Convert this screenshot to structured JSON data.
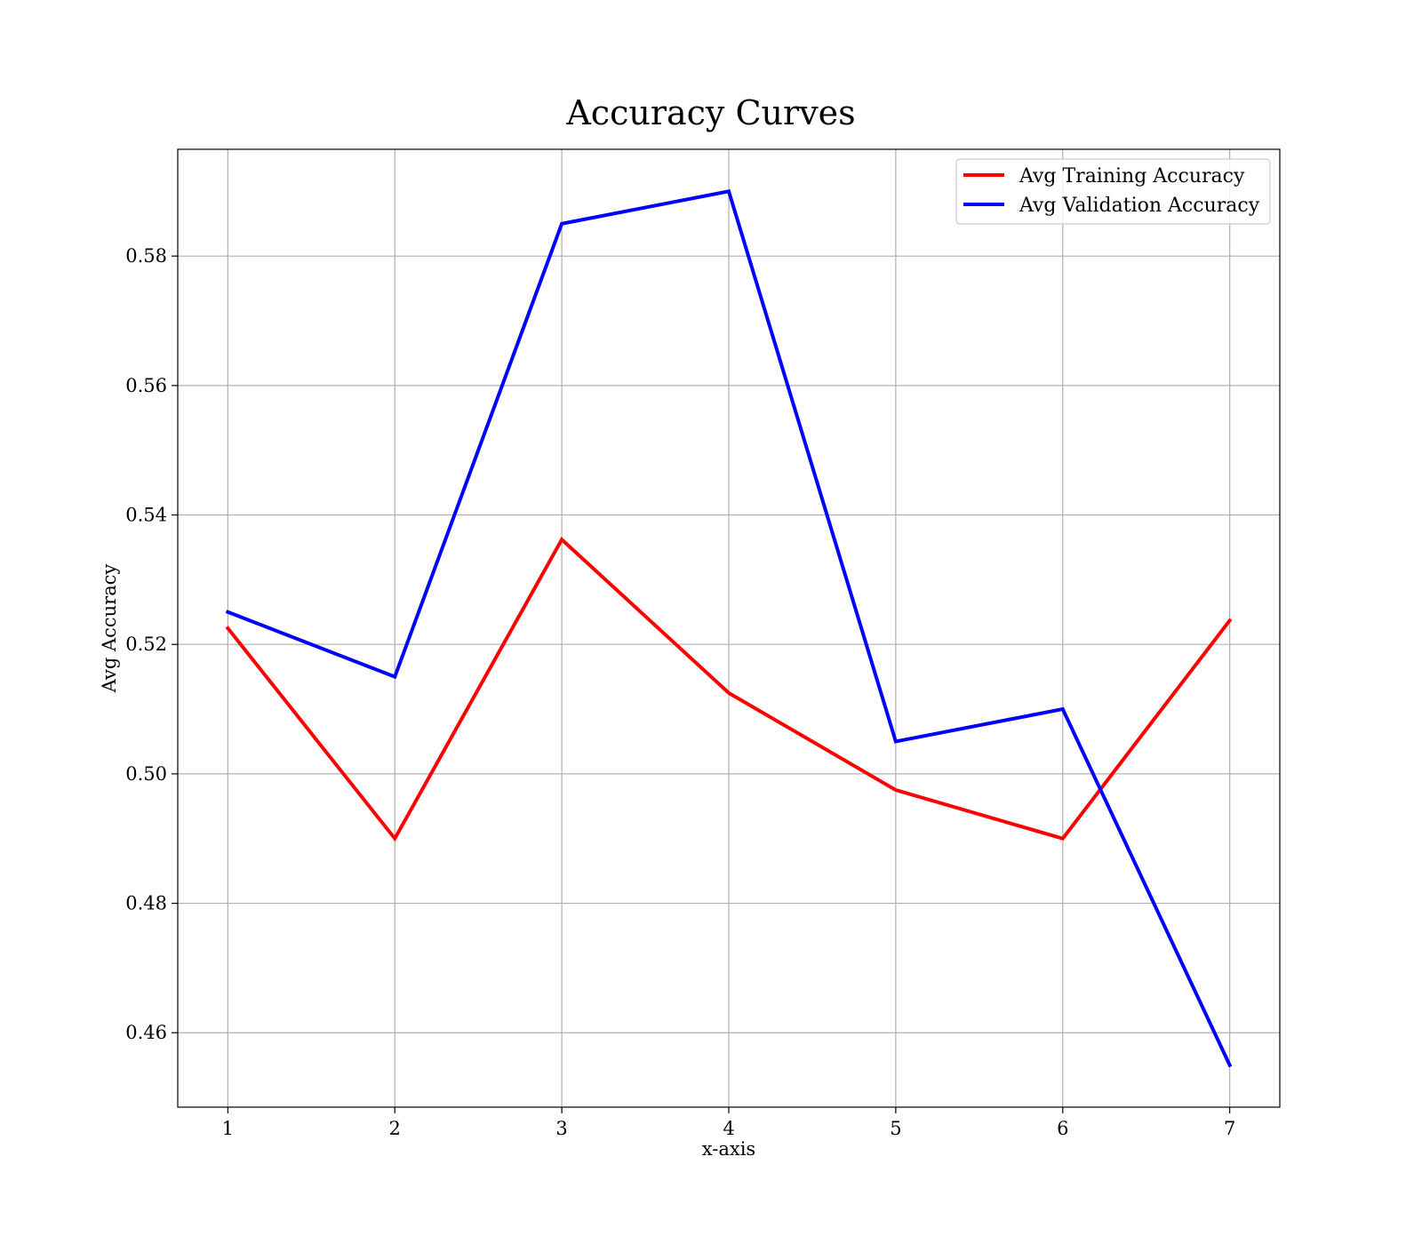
{
  "chart_data": {
    "type": "line",
    "title": "Accuracy Curves",
    "xlabel": "x-axis",
    "ylabel": "Avg Accuracy",
    "x": [
      1,
      2,
      3,
      4,
      5,
      6,
      7
    ],
    "xlim": [
      0.7,
      7.3
    ],
    "ylim": [
      0.4485,
      0.5965
    ],
    "x_ticks": [
      1,
      2,
      3,
      4,
      5,
      6,
      7
    ],
    "y_ticks": [
      0.46,
      0.48,
      0.5,
      0.52,
      0.54,
      0.56,
      0.58
    ],
    "grid": true,
    "legend_position": "top-right",
    "series": [
      {
        "name": "Avg Training Accuracy",
        "color": "#ff0000",
        "values": [
          0.5225,
          0.49,
          0.5362,
          0.5125,
          0.4975,
          0.49,
          0.5237
        ]
      },
      {
        "name": "Avg Validation Accuracy",
        "color": "#0000ff",
        "values": [
          0.525,
          0.515,
          0.585,
          0.59,
          0.505,
          0.51,
          0.455
        ]
      }
    ]
  }
}
